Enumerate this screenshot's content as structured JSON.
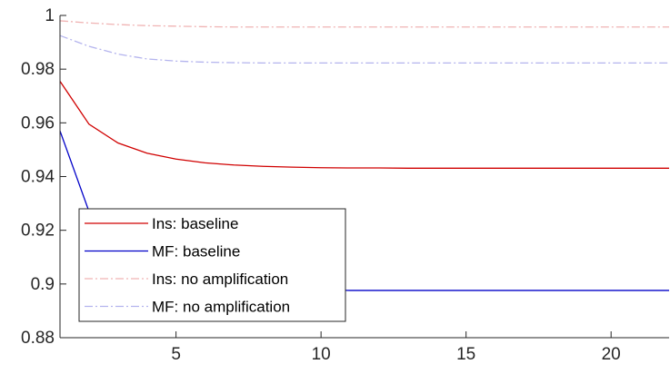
{
  "chart_data": {
    "type": "line",
    "xlim": [
      1,
      22
    ],
    "ylim": [
      0.88,
      1.0
    ],
    "x_ticks": [
      5,
      10,
      15,
      20
    ],
    "y_ticks": [
      0.88,
      0.9,
      0.92,
      0.94,
      0.96,
      0.98,
      1
    ],
    "x_tick_labels": [
      "5",
      "10",
      "15",
      "20"
    ],
    "y_tick_labels": [
      "0.88",
      "0.9",
      "0.92",
      "0.94",
      "0.96",
      "0.98",
      "1"
    ],
    "grid": false,
    "legend_position": "bottom-left",
    "x": [
      1,
      2,
      3,
      4,
      5,
      6,
      7,
      8,
      9,
      10,
      11,
      12,
      13,
      14,
      15,
      16,
      17,
      18,
      19,
      20,
      21,
      22
    ],
    "series": [
      {
        "name": "Ins: baseline",
        "color": "#d00000",
        "style": "solid",
        "values": [
          0.9755,
          0.9595,
          0.9525,
          0.9487,
          0.9465,
          0.9451,
          0.9443,
          0.9438,
          0.9435,
          0.9433,
          0.9432,
          0.9432,
          0.9431,
          0.9431,
          0.9431,
          0.9431,
          0.9431,
          0.9431,
          0.9431,
          0.9431,
          0.9431,
          0.9431
        ]
      },
      {
        "name": "MF: baseline",
        "color": "#0000c8",
        "style": "solid",
        "values": [
          0.957,
          0.927,
          0.912,
          0.904,
          0.9005,
          0.899,
          0.8983,
          0.898,
          0.8978,
          0.8977,
          0.8976,
          0.8976,
          0.8976,
          0.8976,
          0.8976,
          0.8976,
          0.8976,
          0.8976,
          0.8976,
          0.8976,
          0.8976,
          0.8976
        ]
      },
      {
        "name": "Ins: no amplification",
        "color": "#f0b4b4",
        "style": "dashdot",
        "values": [
          0.998,
          0.9972,
          0.9966,
          0.9962,
          0.996,
          0.9958,
          0.9957,
          0.9957,
          0.9957,
          0.9957,
          0.9957,
          0.9957,
          0.9957,
          0.9957,
          0.9957,
          0.9957,
          0.9957,
          0.9957,
          0.9957,
          0.9957,
          0.9957,
          0.9957
        ]
      },
      {
        "name": "MF: no amplification",
        "color": "#b4b4ee",
        "style": "dashdot",
        "values": [
          0.9925,
          0.9885,
          0.9856,
          0.9838,
          0.983,
          0.9826,
          0.9824,
          0.9823,
          0.9823,
          0.9823,
          0.9823,
          0.9823,
          0.9823,
          0.9823,
          0.9823,
          0.9823,
          0.9823,
          0.9823,
          0.9823,
          0.9823,
          0.9823,
          0.9823
        ]
      }
    ]
  }
}
